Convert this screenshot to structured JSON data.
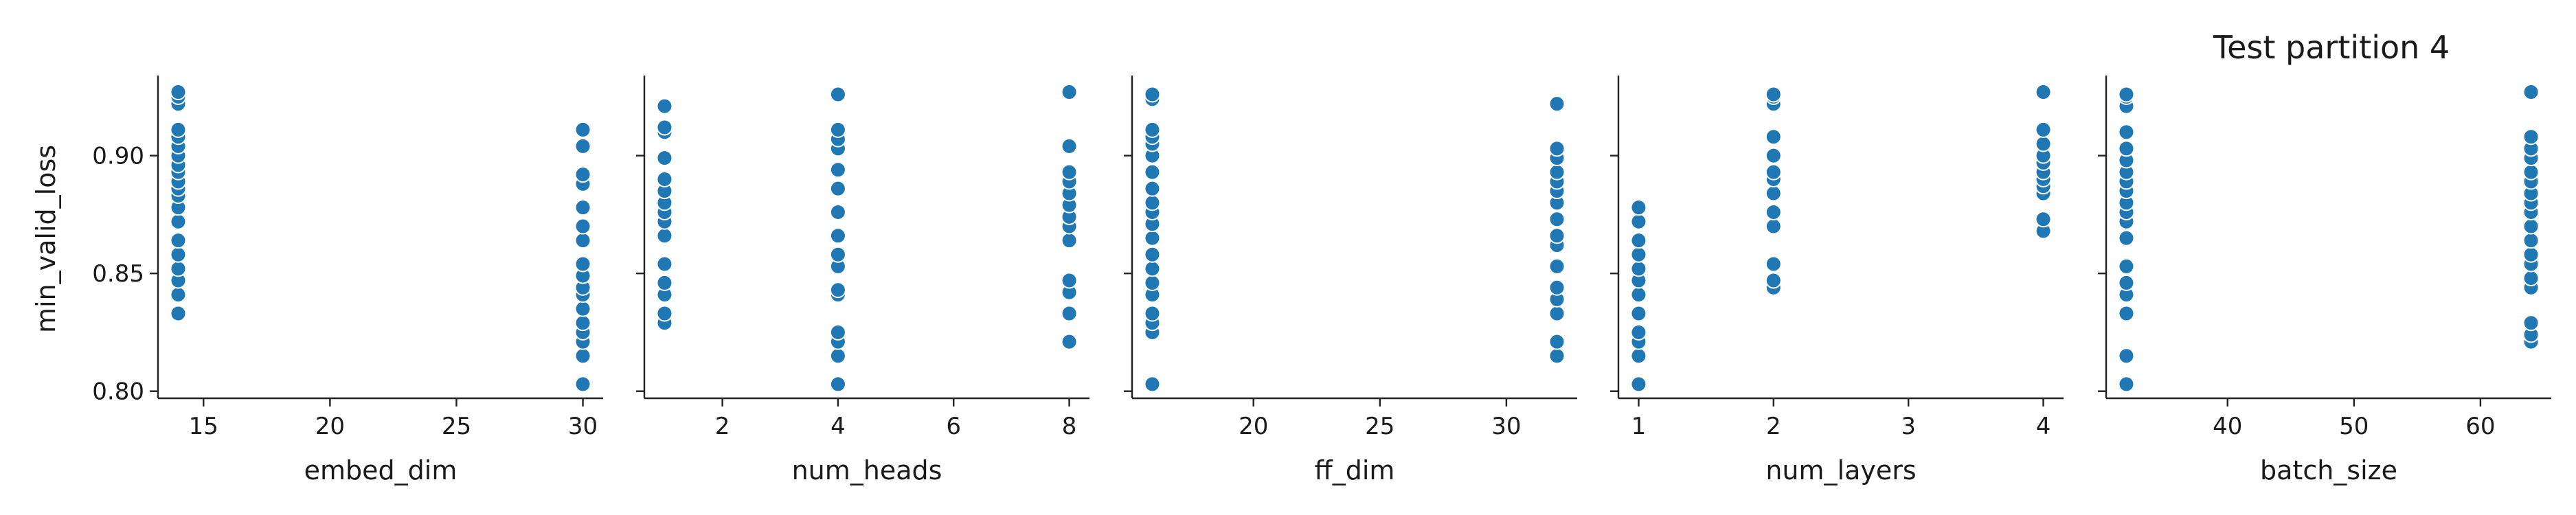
{
  "chart_data": {
    "type": "scatter",
    "title": "Test partition 4",
    "ylabel": "min_valid_loss",
    "y_ticks": [
      0.8,
      0.85,
      0.9
    ],
    "ylim": [
      0.797,
      0.934
    ],
    "grid": false,
    "color": "#1f77b4",
    "panels": [
      {
        "xlabel": "embed_dim",
        "xlim": [
          13.2,
          30.8
        ],
        "x_ticks": [
          15,
          20,
          25,
          30
        ],
        "points": [
          [
            14,
            0.833
          ],
          [
            14,
            0.841
          ],
          [
            14,
            0.847
          ],
          [
            14,
            0.852
          ],
          [
            14,
            0.858
          ],
          [
            14,
            0.864
          ],
          [
            14,
            0.872
          ],
          [
            14,
            0.878
          ],
          [
            14,
            0.883
          ],
          [
            14,
            0.886
          ],
          [
            14,
            0.889
          ],
          [
            14,
            0.893
          ],
          [
            14,
            0.896
          ],
          [
            14,
            0.9
          ],
          [
            14,
            0.904
          ],
          [
            14,
            0.908
          ],
          [
            14,
            0.911
          ],
          [
            14,
            0.922
          ],
          [
            14,
            0.925
          ],
          [
            14,
            0.927
          ],
          [
            30,
            0.803
          ],
          [
            30,
            0.815
          ],
          [
            30,
            0.821
          ],
          [
            30,
            0.825
          ],
          [
            30,
            0.829
          ],
          [
            30,
            0.835
          ],
          [
            30,
            0.841
          ],
          [
            30,
            0.844
          ],
          [
            30,
            0.849
          ],
          [
            30,
            0.854
          ],
          [
            30,
            0.864
          ],
          [
            30,
            0.87
          ],
          [
            30,
            0.878
          ],
          [
            30,
            0.888
          ],
          [
            30,
            0.892
          ],
          [
            30,
            0.904
          ],
          [
            30,
            0.911
          ]
        ]
      },
      {
        "xlabel": "num_heads",
        "xlim": [
          0.65,
          8.35
        ],
        "x_ticks": [
          2,
          4,
          6,
          8
        ],
        "points": [
          [
            1,
            0.829
          ],
          [
            1,
            0.833
          ],
          [
            1,
            0.841
          ],
          [
            1,
            0.846
          ],
          [
            1,
            0.854
          ],
          [
            1,
            0.866
          ],
          [
            1,
            0.872
          ],
          [
            1,
            0.876
          ],
          [
            1,
            0.88
          ],
          [
            1,
            0.885
          ],
          [
            1,
            0.89
          ],
          [
            1,
            0.899
          ],
          [
            1,
            0.91
          ],
          [
            1,
            0.912
          ],
          [
            1,
            0.921
          ],
          [
            4,
            0.803
          ],
          [
            4,
            0.815
          ],
          [
            4,
            0.821
          ],
          [
            4,
            0.825
          ],
          [
            4,
            0.841
          ],
          [
            4,
            0.843
          ],
          [
            4,
            0.853
          ],
          [
            4,
            0.858
          ],
          [
            4,
            0.866
          ],
          [
            4,
            0.876
          ],
          [
            4,
            0.886
          ],
          [
            4,
            0.894
          ],
          [
            4,
            0.903
          ],
          [
            4,
            0.907
          ],
          [
            4,
            0.911
          ],
          [
            4,
            0.926
          ],
          [
            8,
            0.821
          ],
          [
            8,
            0.833
          ],
          [
            8,
            0.842
          ],
          [
            8,
            0.847
          ],
          [
            8,
            0.864
          ],
          [
            8,
            0.87
          ],
          [
            8,
            0.874
          ],
          [
            8,
            0.879
          ],
          [
            8,
            0.884
          ],
          [
            8,
            0.889
          ],
          [
            8,
            0.893
          ],
          [
            8,
            0.904
          ],
          [
            8,
            0.927
          ]
        ]
      },
      {
        "xlabel": "ff_dim",
        "xlim": [
          15.2,
          32.8
        ],
        "x_ticks": [
          20,
          25,
          30
        ],
        "points": [
          [
            16,
            0.803
          ],
          [
            16,
            0.825
          ],
          [
            16,
            0.829
          ],
          [
            16,
            0.833
          ],
          [
            16,
            0.841
          ],
          [
            16,
            0.846
          ],
          [
            16,
            0.852
          ],
          [
            16,
            0.858
          ],
          [
            16,
            0.865
          ],
          [
            16,
            0.871
          ],
          [
            16,
            0.876
          ],
          [
            16,
            0.88
          ],
          [
            16,
            0.886
          ],
          [
            16,
            0.893
          ],
          [
            16,
            0.9
          ],
          [
            16,
            0.905
          ],
          [
            16,
            0.908
          ],
          [
            16,
            0.911
          ],
          [
            16,
            0.924
          ],
          [
            16,
            0.926
          ],
          [
            32,
            0.815
          ],
          [
            32,
            0.821
          ],
          [
            32,
            0.833
          ],
          [
            32,
            0.839
          ],
          [
            32,
            0.844
          ],
          [
            32,
            0.853
          ],
          [
            32,
            0.862
          ],
          [
            32,
            0.866
          ],
          [
            32,
            0.873
          ],
          [
            32,
            0.88
          ],
          [
            32,
            0.885
          ],
          [
            32,
            0.889
          ],
          [
            32,
            0.893
          ],
          [
            32,
            0.899
          ],
          [
            32,
            0.903
          ],
          [
            32,
            0.922
          ]
        ]
      },
      {
        "xlabel": "num_layers",
        "xlim": [
          0.85,
          4.15
        ],
        "x_ticks": [
          1,
          2,
          3,
          4
        ],
        "points": [
          [
            1,
            0.803
          ],
          [
            1,
            0.815
          ],
          [
            1,
            0.821
          ],
          [
            1,
            0.825
          ],
          [
            1,
            0.833
          ],
          [
            1,
            0.841
          ],
          [
            1,
            0.847
          ],
          [
            1,
            0.852
          ],
          [
            1,
            0.858
          ],
          [
            1,
            0.864
          ],
          [
            1,
            0.872
          ],
          [
            1,
            0.878
          ],
          [
            2,
            0.844
          ],
          [
            2,
            0.847
          ],
          [
            2,
            0.854
          ],
          [
            2,
            0.87
          ],
          [
            2,
            0.876
          ],
          [
            2,
            0.884
          ],
          [
            2,
            0.89
          ],
          [
            2,
            0.893
          ],
          [
            2,
            0.9
          ],
          [
            2,
            0.908
          ],
          [
            2,
            0.922
          ],
          [
            2,
            0.925
          ],
          [
            2,
            0.926
          ],
          [
            4,
            0.868
          ],
          [
            4,
            0.873
          ],
          [
            4,
            0.884
          ],
          [
            4,
            0.887
          ],
          [
            4,
            0.89
          ],
          [
            4,
            0.893
          ],
          [
            4,
            0.897
          ],
          [
            4,
            0.9
          ],
          [
            4,
            0.905
          ],
          [
            4,
            0.911
          ],
          [
            4,
            0.927
          ]
        ]
      },
      {
        "xlabel": "batch_size",
        "xlim": [
          30.4,
          65.6
        ],
        "x_ticks": [
          40,
          50,
          60
        ],
        "points": [
          [
            32,
            0.803
          ],
          [
            32,
            0.815
          ],
          [
            32,
            0.833
          ],
          [
            32,
            0.841
          ],
          [
            32,
            0.846
          ],
          [
            32,
            0.853
          ],
          [
            32,
            0.865
          ],
          [
            32,
            0.872
          ],
          [
            32,
            0.876
          ],
          [
            32,
            0.88
          ],
          [
            32,
            0.885
          ],
          [
            32,
            0.889
          ],
          [
            32,
            0.893
          ],
          [
            32,
            0.898
          ],
          [
            32,
            0.903
          ],
          [
            32,
            0.91
          ],
          [
            32,
            0.921
          ],
          [
            32,
            0.925
          ],
          [
            32,
            0.926
          ],
          [
            64,
            0.821
          ],
          [
            64,
            0.824
          ],
          [
            64,
            0.829
          ],
          [
            64,
            0.844
          ],
          [
            64,
            0.848
          ],
          [
            64,
            0.854
          ],
          [
            64,
            0.858
          ],
          [
            64,
            0.864
          ],
          [
            64,
            0.87
          ],
          [
            64,
            0.876
          ],
          [
            64,
            0.88
          ],
          [
            64,
            0.884
          ],
          [
            64,
            0.889
          ],
          [
            64,
            0.893
          ],
          [
            64,
            0.899
          ],
          [
            64,
            0.903
          ],
          [
            64,
            0.908
          ],
          [
            64,
            0.927
          ]
        ]
      }
    ]
  }
}
